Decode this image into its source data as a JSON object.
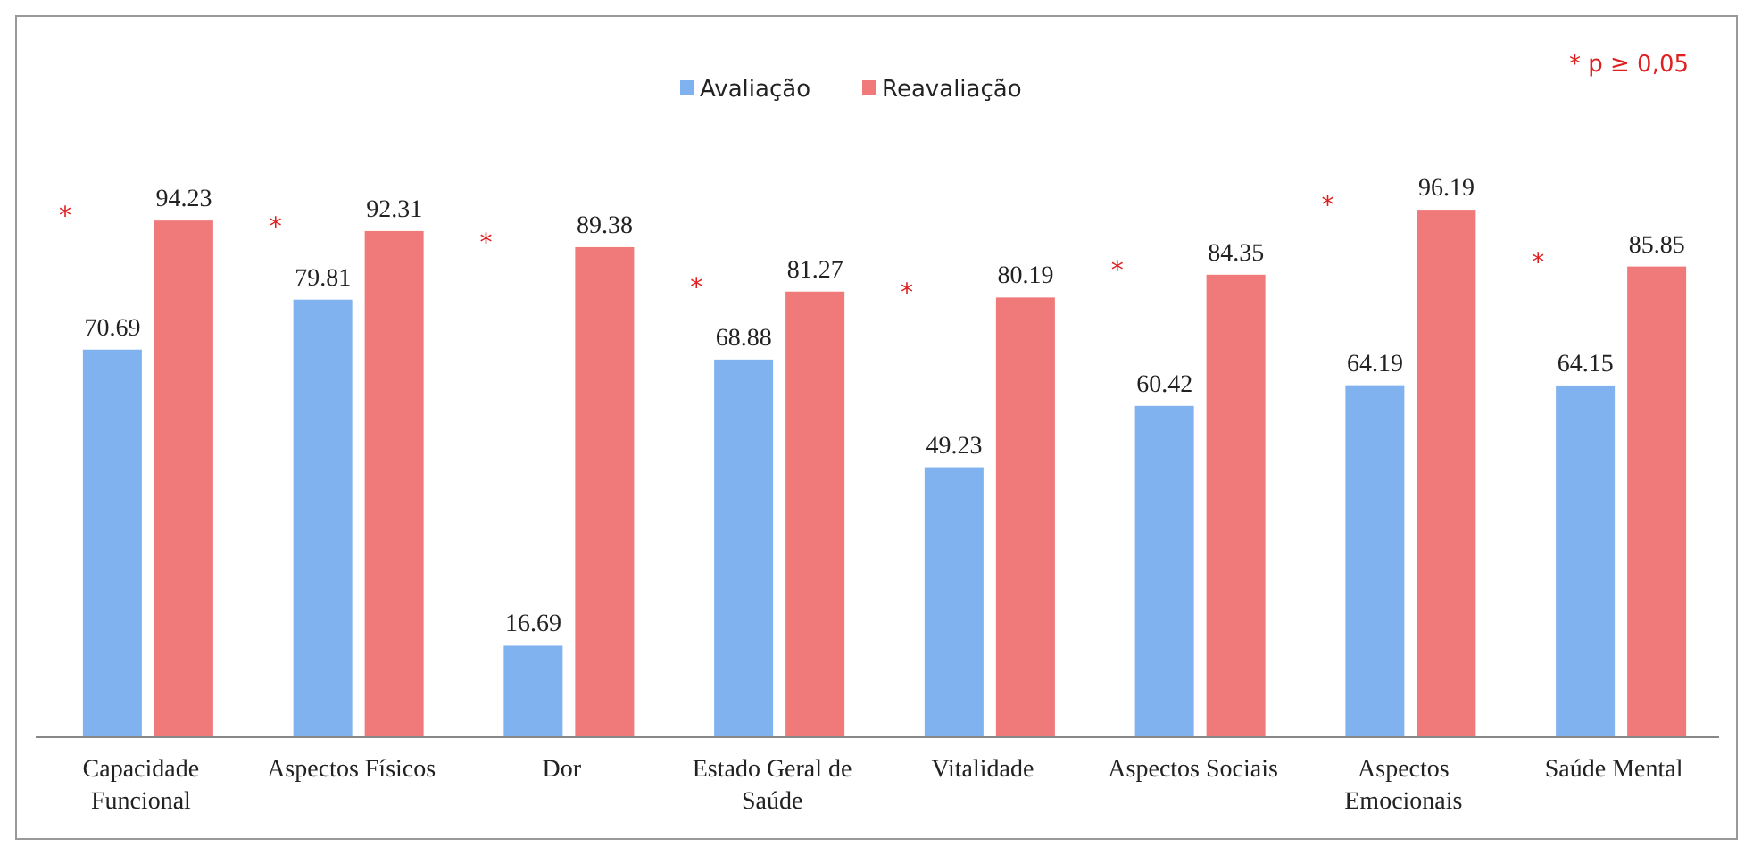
{
  "chart_data": {
    "type": "bar",
    "categories": [
      "Capacidade Funcional",
      "Aspectos Físicos",
      "Dor",
      "Estado Geral de Saúde",
      "Vitalidade",
      "Aspectos Sociais",
      "Aspectos Emocionais",
      "Saúde Mental"
    ],
    "series": [
      {
        "name": "Avaliação",
        "color": "#7fb2ee",
        "values": [
          70.69,
          79.81,
          16.69,
          68.88,
          49.23,
          60.42,
          64.19,
          64.15
        ]
      },
      {
        "name": "Reavaliação",
        "color": "#f07a7a",
        "values": [
          94.23,
          92.31,
          89.38,
          81.27,
          80.19,
          84.35,
          96.19,
          85.85
        ]
      }
    ],
    "data_labels": true,
    "legend": "top",
    "annotations": [
      "* p ≥ 0,05",
      "*",
      "*",
      "*",
      "*",
      "*",
      "*",
      "*",
      "*"
    ]
  }
}
